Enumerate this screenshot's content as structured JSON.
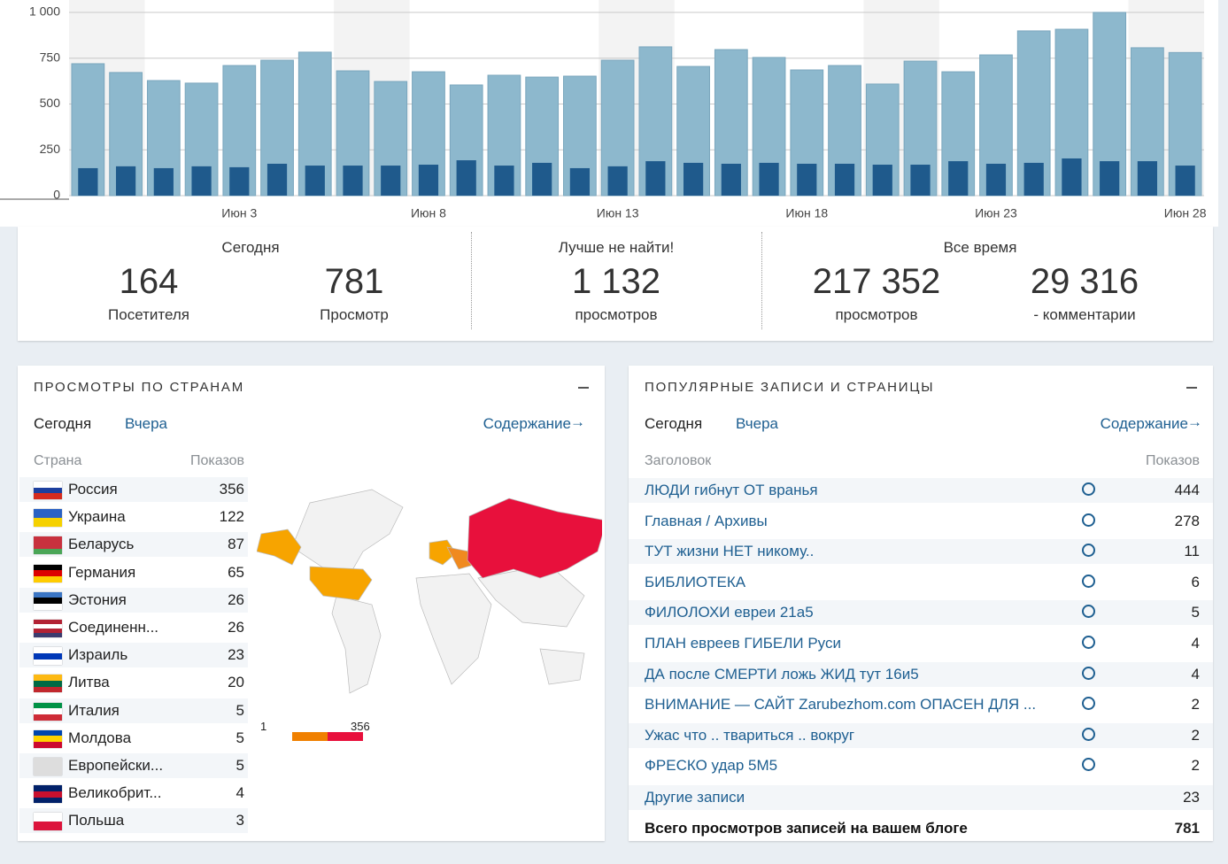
{
  "chart_data": {
    "type": "bar",
    "categories": [
      null,
      null,
      null,
      null,
      "Июн 3",
      null,
      null,
      null,
      null,
      "Июн 8",
      null,
      null,
      null,
      null,
      "Июн 13",
      null,
      null,
      null,
      null,
      "Июн 18",
      null,
      null,
      null,
      null,
      "Июн 23",
      null,
      null,
      null,
      null,
      "Июн 28"
    ],
    "series": [
      {
        "color": "#8db8cd",
        "values": [
          720,
          672,
          628,
          614,
          710,
          739,
          783,
          681,
          623,
          676,
          604,
          657,
          647,
          652,
          739,
          812,
          705,
          797,
          754,
          686,
          710,
          609,
          734,
          676,
          768,
          899,
          908,
          1000,
          807,
          781
        ]
      },
      {
        "color": "#1f5a8c",
        "values": [
          150,
          160,
          150,
          160,
          155,
          174,
          164,
          164,
          164,
          169,
          193,
          164,
          179,
          150,
          160,
          188,
          179,
          174,
          179,
          174,
          174,
          169,
          169,
          188,
          174,
          179,
          203,
          188,
          188,
          164
        ]
      }
    ],
    "ylim": [
      0,
      1000
    ],
    "yticks": [
      0,
      250,
      500,
      750,
      {
        "value": 1000,
        "label": "1 000"
      }
    ],
    "grid": true
  },
  "summary": [
    {
      "title": "Сегодня",
      "items": [
        {
          "value": "164",
          "label": "Посетителя"
        },
        {
          "value": "781",
          "label": "Просмотр"
        }
      ]
    },
    {
      "title": "Лучше не найти!",
      "items": [
        {
          "value": "1 132",
          "label": "просмотров"
        }
      ]
    },
    {
      "title": "Все время",
      "items": [
        {
          "value": "217 352",
          "label": "просмотров"
        },
        {
          "value": "29 316",
          "label": "- комментарии"
        }
      ]
    }
  ],
  "countries": {
    "title": "ПРОСМОТРЫ ПО СТРАНАМ",
    "tabs": [
      "Сегодня",
      "Вчера"
    ],
    "link": "Содержание",
    "columns": [
      "Страна",
      "Показов"
    ],
    "rows": [
      [
        "Россия",
        "356"
      ],
      [
        "Украина",
        "122"
      ],
      [
        "Беларусь",
        "87"
      ],
      [
        "Германия",
        "65"
      ],
      [
        "Эстония",
        "26"
      ],
      [
        "Соединенн...",
        "26"
      ],
      [
        "Израиль",
        "23"
      ],
      [
        "Литва",
        "20"
      ],
      [
        "Италия",
        "5"
      ],
      [
        "Молдова",
        "5"
      ],
      [
        "Европейски...",
        "5"
      ],
      [
        "Великобрит...",
        "4"
      ],
      [
        "Польша",
        "3"
      ]
    ],
    "legend": {
      "min": "1",
      "max": "356"
    }
  },
  "posts": {
    "title": "ПОПУЛЯРНЫЕ ЗАПИСИ И СТРАНИЦЫ",
    "tabs": [
      "Сегодня",
      "Вчера"
    ],
    "link": "Содержание",
    "columns": [
      "Заголовок",
      "Показов"
    ],
    "rows": [
      [
        "ЛЮДИ гибнут ОТ вранья",
        "444"
      ],
      [
        "Главная / Архивы",
        "278"
      ],
      [
        "ТУТ жизни НЕТ никому..",
        "11"
      ],
      [
        "БИБЛИОТЕКА",
        "6"
      ],
      [
        "ФИЛОЛОХИ евреи 21а5",
        "5"
      ],
      [
        "ПЛАН евреев ГИБЕЛИ Руси",
        "4"
      ],
      [
        "ДА после СМЕРТИ ложь ЖИД тут 16и5",
        "4"
      ],
      [
        "ВНИМАНИЕ — САЙТ Zarubezhom.com ОПАСЕН ДЛЯ ...",
        "2"
      ],
      [
        "Ужас что .. твариться .. вокруг",
        "2"
      ],
      [
        "ФРЕСКО удар 5М5",
        "2"
      ]
    ],
    "other": [
      "Другие записи",
      "23"
    ],
    "total": [
      "Всего просмотров записей на вашем блоге",
      "781"
    ]
  }
}
